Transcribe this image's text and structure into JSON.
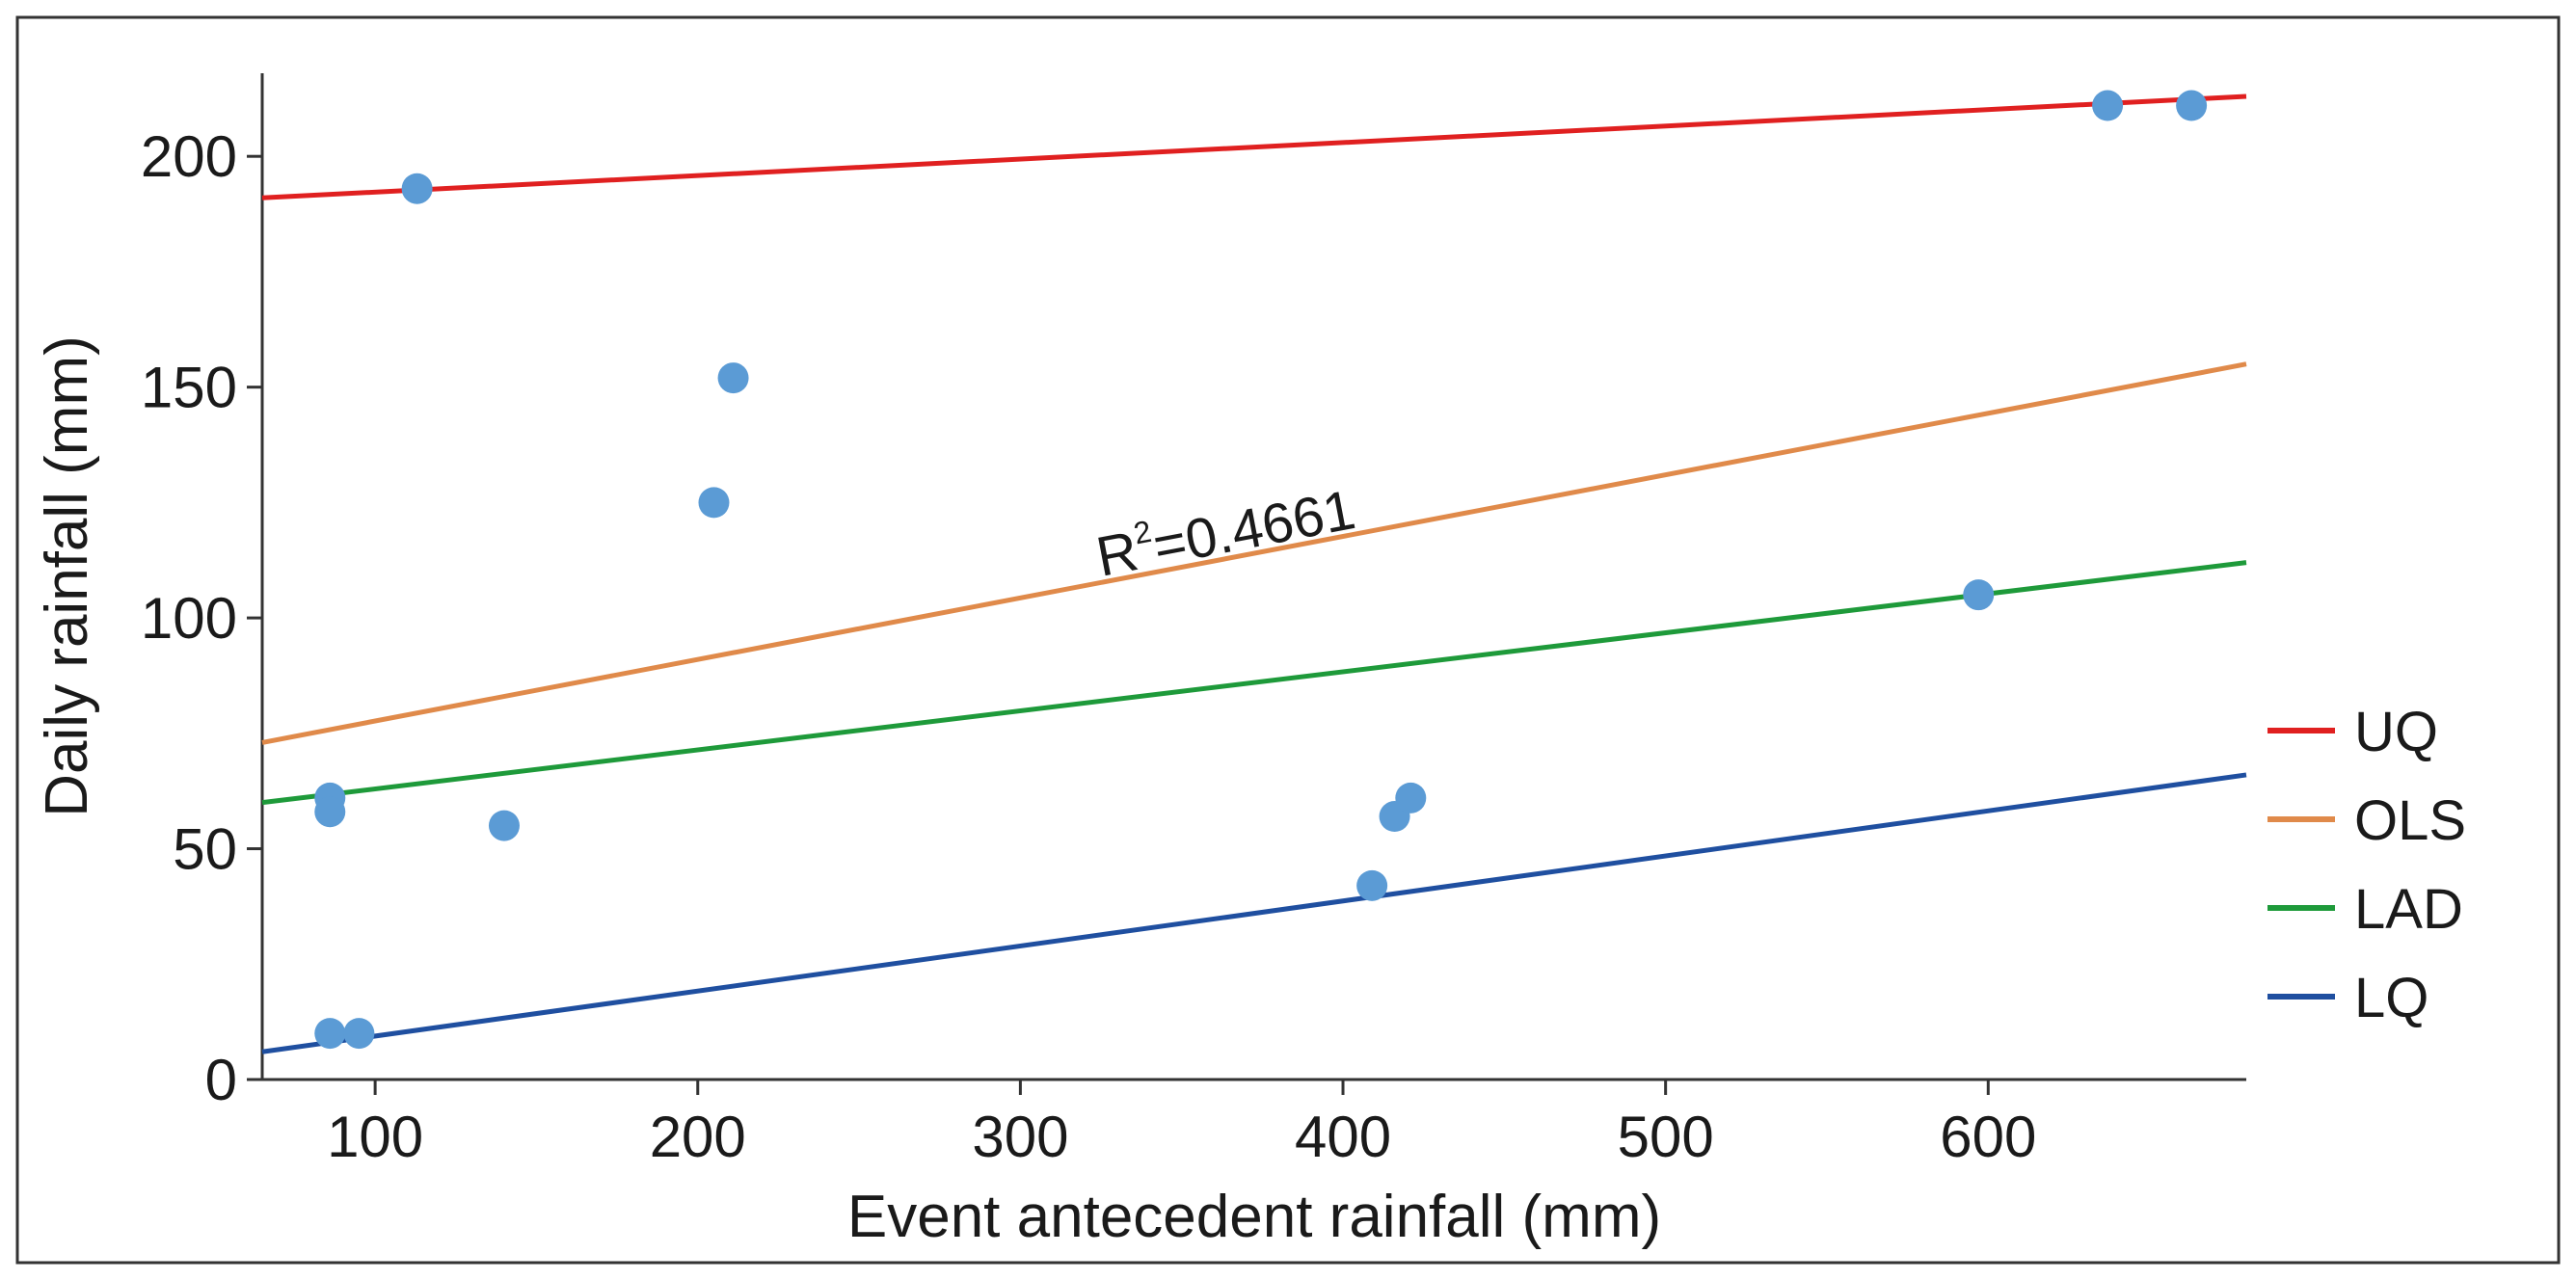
{
  "chart_data": {
    "type": "scatter",
    "title": "",
    "xlabel": "Event antecedent rainfall (mm)",
    "ylabel": "Daily rainfall (mm)",
    "xlim": [
      65,
      680
    ],
    "ylim": [
      0,
      218
    ],
    "xticks": [
      100,
      200,
      300,
      400,
      500,
      600
    ],
    "xtick_labels": [
      "100",
      "200",
      "300",
      "400",
      "500",
      "600"
    ],
    "yticks": [
      0,
      50,
      100,
      150,
      200
    ],
    "ytick_labels": [
      "0",
      "50",
      "100",
      "150",
      "200"
    ],
    "grid": false,
    "legend_position": "right",
    "points": {
      "color": "#5b9bd5",
      "x": [
        113,
        211,
        205,
        86,
        86,
        140,
        86,
        95,
        409,
        416,
        421,
        597,
        637,
        663
      ],
      "y": [
        193,
        152,
        125,
        61,
        58,
        55,
        10,
        10,
        42,
        57,
        61,
        105,
        211,
        211
      ]
    },
    "series": [
      {
        "name": "UQ",
        "color": "#e02020",
        "x": [
          65,
          680
        ],
        "y": [
          191,
          213
        ]
      },
      {
        "name": "OLS",
        "color": "#e08a4a",
        "x": [
          65,
          680
        ],
        "y": [
          73,
          155
        ]
      },
      {
        "name": "LAD",
        "color": "#1e9a3a",
        "x": [
          65,
          680
        ],
        "y": [
          60,
          112
        ]
      },
      {
        "name": "LQ",
        "color": "#1f4fa0",
        "x": [
          65,
          680
        ],
        "y": [
          6,
          66
        ]
      }
    ],
    "annotation": {
      "text_base": "R",
      "text_sup": "2",
      "text_rest": "=0.4661",
      "x": 325,
      "y": 109
    }
  }
}
